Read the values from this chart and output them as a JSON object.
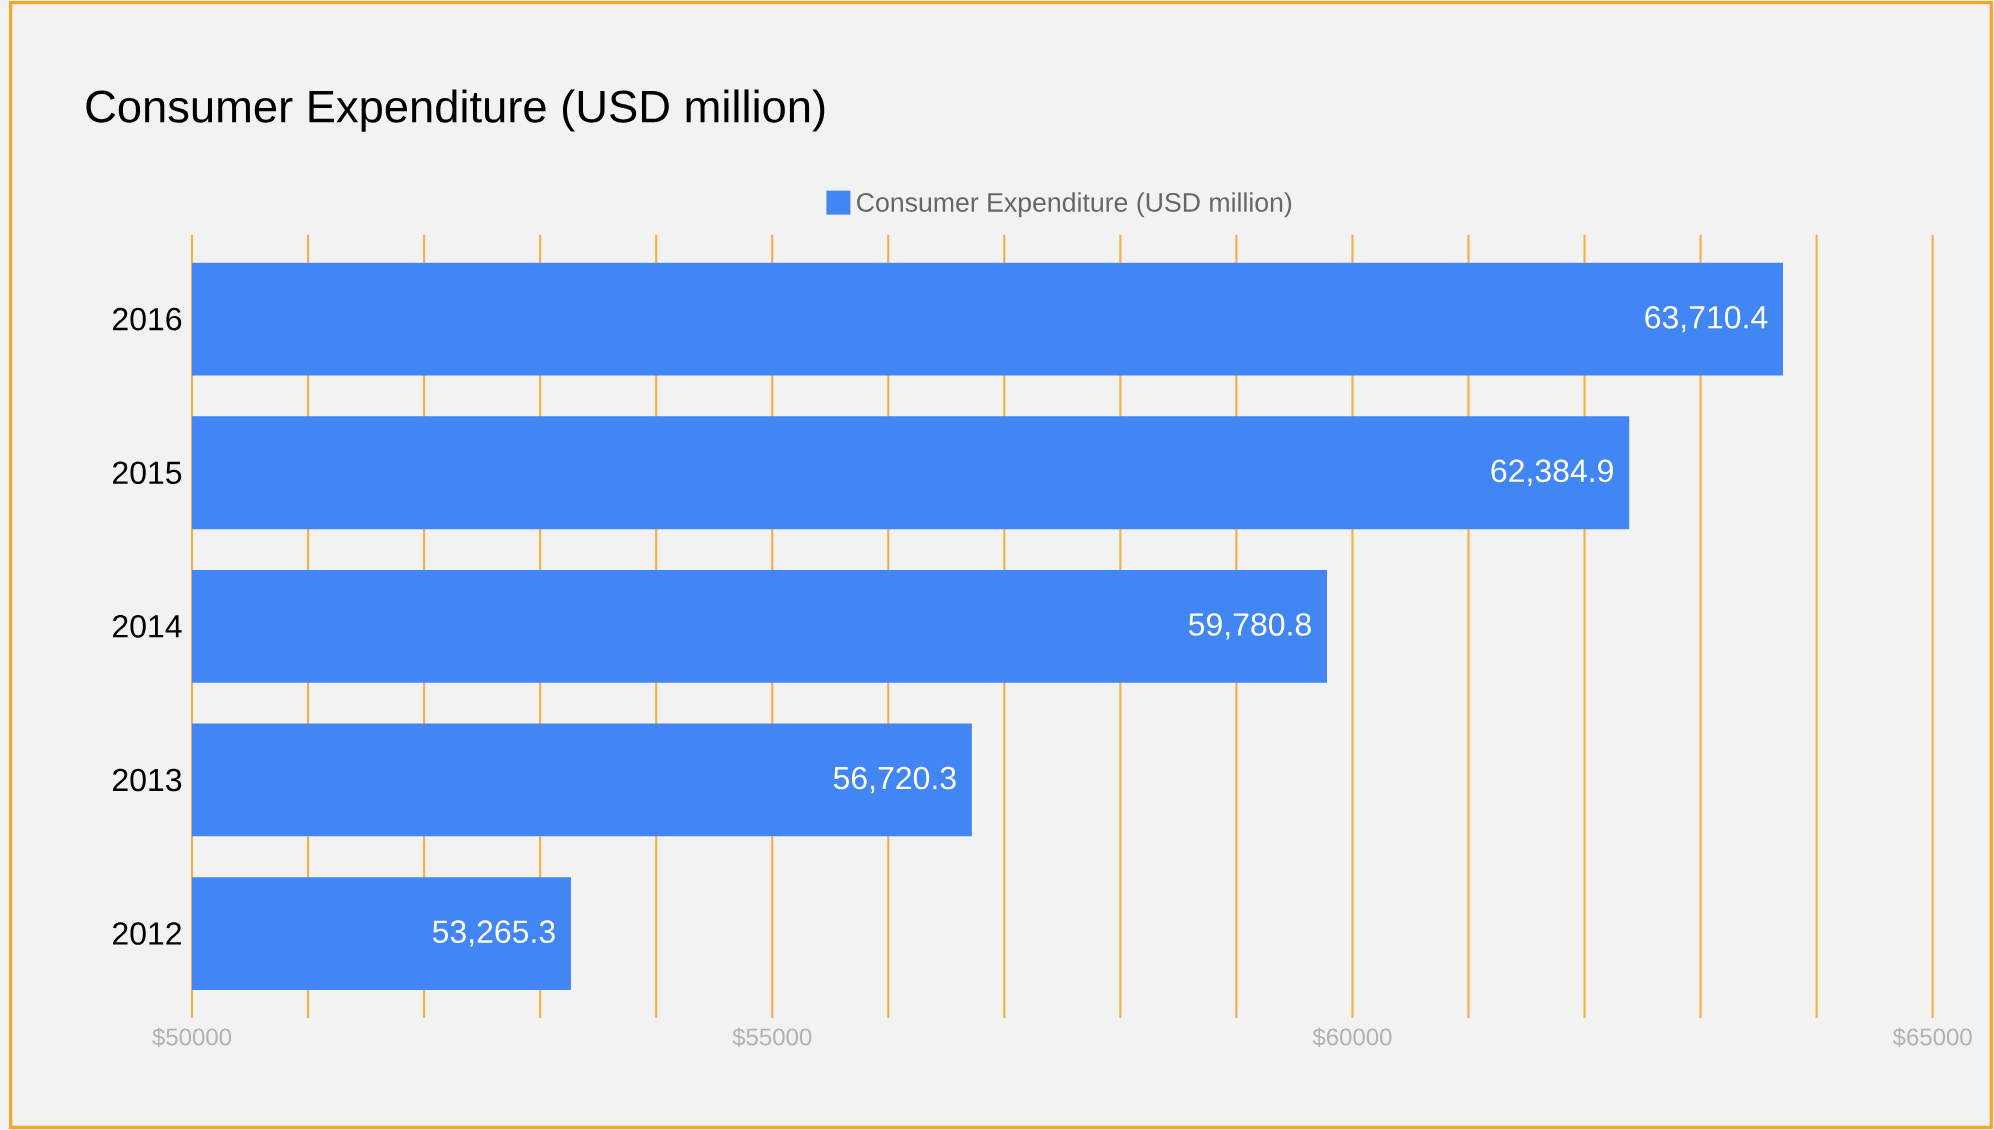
{
  "chart_data": {
    "type": "bar",
    "orientation": "horizontal",
    "title": "Consumer Expenditure (USD million)",
    "categories": [
      "2016",
      "2015",
      "2014",
      "2013",
      "2012"
    ],
    "series": [
      {
        "name": "Consumer Expenditure (USD million)",
        "color": "#4285f4",
        "values": [
          63710.4,
          62384.9,
          59780.8,
          56720.3,
          53265.3
        ],
        "value_labels": [
          "63,710.4",
          "62,384.9",
          "59,780.8",
          "56,720.3",
          "53,265.3"
        ]
      }
    ],
    "xlim": [
      50000,
      65000
    ],
    "xticks": [
      {
        "value": 50000,
        "label": "$50000"
      },
      {
        "value": 51000,
        "label": null
      },
      {
        "value": 52000,
        "label": null
      },
      {
        "value": 53000,
        "label": null
      },
      {
        "value": 54000,
        "label": null
      },
      {
        "value": 55000,
        "label": "$55000"
      },
      {
        "value": 56000,
        "label": null
      },
      {
        "value": 57000,
        "label": null
      },
      {
        "value": 58000,
        "label": null
      },
      {
        "value": 59000,
        "label": null
      },
      {
        "value": 60000,
        "label": "$60000"
      },
      {
        "value": 61000,
        "label": null
      },
      {
        "value": 62000,
        "label": null
      },
      {
        "value": 63000,
        "label": null
      },
      {
        "value": 64000,
        "label": null
      },
      {
        "value": 65000,
        "label": "$65000"
      }
    ],
    "grid": "x",
    "legend": "top"
  }
}
